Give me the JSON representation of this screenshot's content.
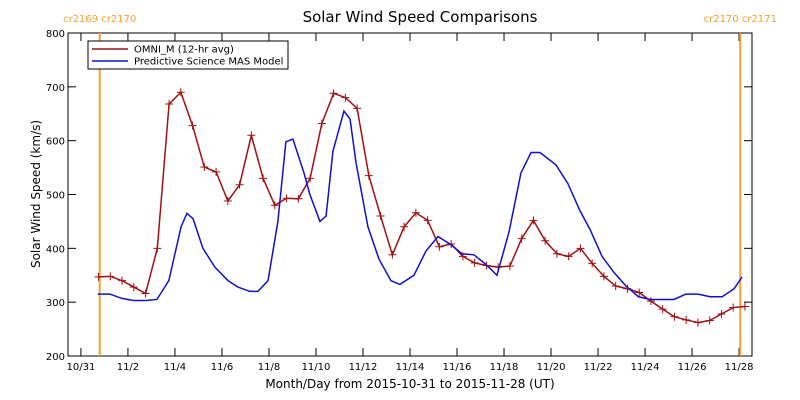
{
  "chart_data": {
    "type": "line",
    "title": "Solar Wind Speed Comparisons",
    "xlabel": "Month/Day from 2015-10-31 to 2015-11-28 (UT)",
    "ylabel": "Solar Wind Speed (km/s)",
    "xlim": [
      -0.55,
      28.55
    ],
    "ylim": [
      200,
      800
    ],
    "xticks": [
      {
        "value": 0,
        "label": "10/31"
      },
      {
        "value": 2,
        "label": "11/2"
      },
      {
        "value": 4,
        "label": "11/4"
      },
      {
        "value": 6,
        "label": "11/6"
      },
      {
        "value": 8,
        "label": "11/8"
      },
      {
        "value": 10,
        "label": "11/10"
      },
      {
        "value": 12,
        "label": "11/12"
      },
      {
        "value": 14,
        "label": "11/14"
      },
      {
        "value": 16,
        "label": "11/16"
      },
      {
        "value": 18,
        "label": "11/18"
      },
      {
        "value": 20,
        "label": "11/20"
      },
      {
        "value": 22,
        "label": "11/22"
      },
      {
        "value": 24,
        "label": "11/24"
      },
      {
        "value": 26,
        "label": "11/26"
      },
      {
        "value": 28,
        "label": "11/28"
      }
    ],
    "yticks": [
      200,
      300,
      400,
      500,
      600,
      700,
      800
    ],
    "legend": "upper left",
    "annotations": [
      {
        "text": "cr2169 cr2170",
        "x": 0.8,
        "color": "#f5a030"
      },
      {
        "text": "cr2170 cr2171",
        "x": 28.05,
        "color": "#f5a030"
      }
    ],
    "series": [
      {
        "name": "OMNI_M (12-hr avg)",
        "color": "#a01010",
        "marker": "+",
        "x": [
          0.75,
          1.25,
          1.75,
          2.25,
          2.75,
          3.25,
          3.75,
          4.25,
          4.75,
          5.25,
          5.75,
          6.25,
          6.75,
          7.25,
          7.75,
          8.25,
          8.75,
          9.25,
          9.75,
          10.25,
          10.75,
          11.25,
          11.75,
          12.25,
          12.75,
          13.25,
          13.75,
          14.25,
          14.75,
          15.25,
          15.75,
          16.25,
          16.75,
          17.25,
          17.75,
          18.25,
          18.75,
          19.25,
          19.75,
          20.25,
          20.75,
          21.25,
          21.75,
          22.25,
          22.75,
          23.25,
          23.75,
          24.25,
          24.75,
          25.25,
          25.75,
          26.25,
          26.75,
          27.25,
          27.75,
          28.25
        ],
        "values": [
          347,
          348,
          340,
          328,
          316,
          400,
          668,
          690,
          628,
          551,
          542,
          488,
          518,
          610,
          530,
          480,
          493,
          492,
          530,
          632,
          688,
          680,
          660,
          535,
          460,
          388,
          440,
          466,
          452,
          403,
          408,
          385,
          373,
          368,
          365,
          367,
          418,
          452,
          414,
          390,
          385,
          400,
          372,
          348,
          330,
          325,
          318,
          302,
          287,
          273,
          267,
          262,
          266,
          278,
          290,
          292
        ]
      },
      {
        "name": "Predictive Science MAS Model",
        "color": "#1010d0",
        "marker": null,
        "x": [
          0.72,
          1.23,
          1.74,
          2.26,
          2.77,
          3.23,
          3.74,
          4.26,
          4.51,
          4.77,
          5.19,
          5.7,
          6.26,
          6.68,
          7.19,
          7.53,
          7.96,
          8.38,
          8.72,
          9.02,
          9.49,
          9.74,
          10.17,
          10.43,
          10.72,
          11.19,
          11.45,
          11.7,
          12.21,
          12.68,
          13.19,
          13.57,
          14.17,
          14.68,
          15.19,
          15.7,
          16.21,
          16.72,
          17.23,
          17.7,
          18.21,
          18.72,
          19.15,
          19.53,
          20.21,
          20.72,
          21.23,
          21.66,
          22.17,
          22.68,
          23.19,
          23.72,
          24.23,
          24.72,
          25.23,
          25.74,
          26.26,
          26.77,
          27.28,
          27.79,
          28.13
        ],
        "values": [
          315,
          315,
          307,
          303,
          303,
          305,
          340,
          440,
          465,
          455,
          400,
          365,
          340,
          328,
          320,
          320,
          340,
          450,
          598,
          603,
          540,
          500,
          450,
          460,
          580,
          655,
          640,
          560,
          440,
          380,
          340,
          333,
          350,
          395,
          422,
          408,
          390,
          388,
          370,
          350,
          430,
          540,
          578,
          578,
          555,
          520,
          470,
          435,
          385,
          355,
          330,
          310,
          305,
          305,
          305,
          315,
          315,
          310,
          310,
          325,
          347
        ]
      }
    ]
  }
}
